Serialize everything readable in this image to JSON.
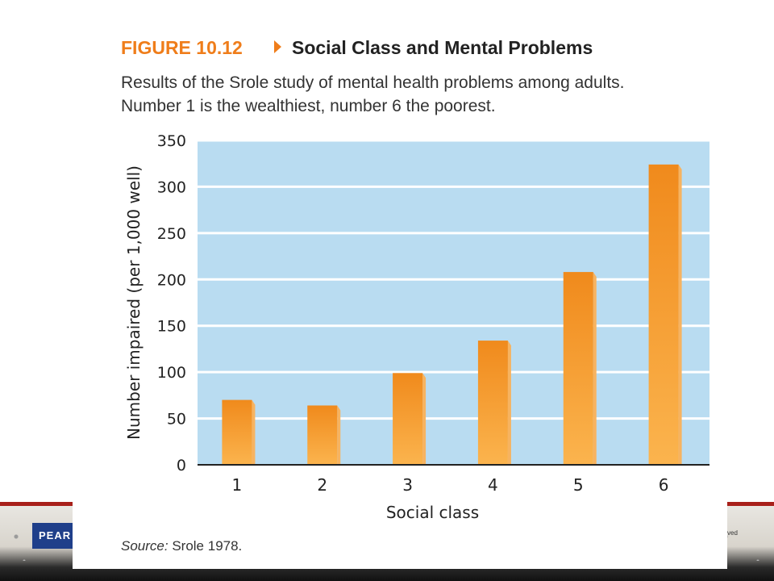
{
  "slide": {
    "logo_text": "PEAR",
    "copyright_fragment": "ved"
  },
  "figure": {
    "label": "FIGURE 10.12",
    "title": "Social Class and Mental Problems",
    "caption_line1": "Results of the Srole study of mental health problems among adults.",
    "caption_line2": "Number 1 is the wealthiest, number 6 the poorest.",
    "source_label": "Source:",
    "source_text": "Srole 1978."
  },
  "colors": {
    "accent": "#ef7d1a",
    "plot_bg": "#b9dcf1",
    "bar_top": "#f08a1c",
    "bar_bottom": "#fbb44e",
    "bar_side": "#f7b360"
  },
  "chart_data": {
    "type": "bar",
    "categories": [
      "1",
      "2",
      "3",
      "4",
      "5",
      "6"
    ],
    "values": [
      70,
      64,
      99,
      134,
      208,
      324
    ],
    "xlabel": "Social class",
    "ylabel": "Number impaired (per 1,000 well)",
    "ylim": [
      0,
      350
    ],
    "yticks": [
      0,
      50,
      100,
      150,
      200,
      250,
      300,
      350
    ],
    "grid": true,
    "legend": "none"
  }
}
